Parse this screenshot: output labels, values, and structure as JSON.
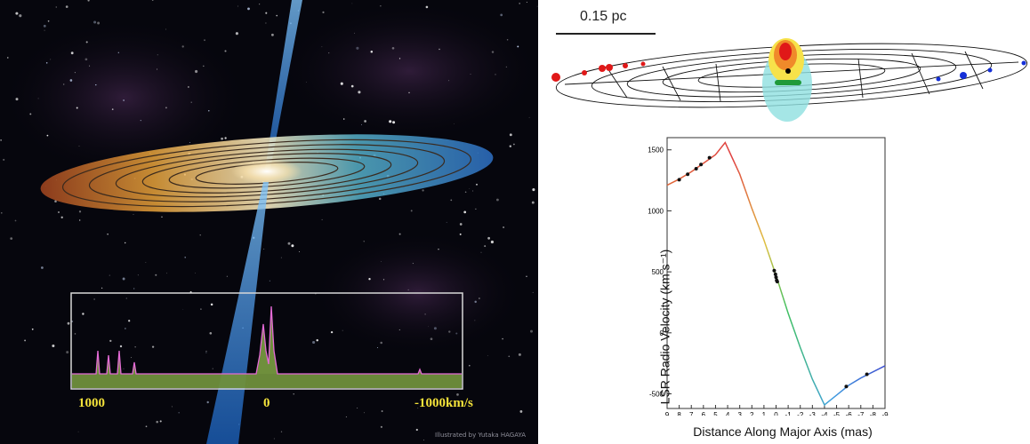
{
  "illustration": {
    "spectrum_labels": {
      "left": "1000",
      "center": "0",
      "right": "-1000km/s"
    },
    "credit": "Illustrated by Yutaka HAGAYA",
    "colors": {
      "jet": "#4aa3e8",
      "spectrum_fill": "#6f8f3c",
      "spectrum_line": "#e46ad6",
      "label": "#f3e23a"
    }
  },
  "disk_map": {
    "scale_bar_label": "0.15 pc",
    "maser_colors": {
      "redshifted": "#e01818",
      "systemic": "#1f9a3a",
      "blueshifted": "#1530d8"
    }
  },
  "chart_data": {
    "type": "line",
    "xlabel": "Distance Along Major Axis (mas)",
    "ylabel": "LSR Radio Velocity (km s⁻¹)",
    "xlim": [
      9,
      -9
    ],
    "ylim": [
      -620,
      1600
    ],
    "x_ticks": [
      "9",
      "8",
      "7",
      "6",
      "5",
      "4",
      "3",
      "2",
      "1",
      "0",
      "-1",
      "-2",
      "-3",
      "-4",
      "-5",
      "-6",
      "-7",
      "-8",
      "-9"
    ],
    "y_ticks": [
      1500,
      1000,
      500,
      0,
      -500
    ],
    "series": [
      {
        "color_scheme": "rainbow",
        "x": [
          9,
          8,
          7,
          6,
          5,
          4.2,
          3,
          2,
          1,
          0,
          -1,
          -2,
          -3,
          -4,
          -5,
          -6,
          -7,
          -8,
          -9
        ],
        "y": [
          1210,
          1260,
          1320,
          1390,
          1460,
          1560,
          1300,
          1020,
          760,
          470,
          160,
          -120,
          -380,
          -590,
          -510,
          -430,
          -370,
          -320,
          -270
        ]
      }
    ],
    "points": [
      {
        "x": 8,
        "y": 1255
      },
      {
        "x": 7.3,
        "y": 1300
      },
      {
        "x": 6.6,
        "y": 1345
      },
      {
        "x": 6.2,
        "y": 1380
      },
      {
        "x": 5.5,
        "y": 1435
      },
      {
        "x": 0.15,
        "y": 510
      },
      {
        "x": 0.05,
        "y": 480
      },
      {
        "x": 0.0,
        "y": 455
      },
      {
        "x": -0.05,
        "y": 430
      },
      {
        "x": -0.1,
        "y": 420
      },
      {
        "x": -5.8,
        "y": -440
      },
      {
        "x": -7.5,
        "y": -340
      }
    ]
  }
}
